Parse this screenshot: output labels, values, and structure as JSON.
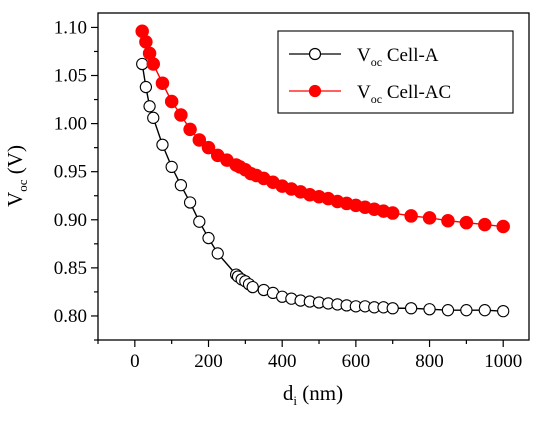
{
  "chart_data": {
    "type": "line",
    "xlabel": "d",
    "xlabel_sub": "i",
    "xlabel_unit": " (nm)",
    "ylabel": "V",
    "ylabel_sub": "oc",
    "ylabel_unit": " (V)",
    "xlim": [
      -100,
      1070
    ],
    "ylim": [
      0.775,
      1.115
    ],
    "xticks": [
      0,
      200,
      400,
      600,
      800,
      1000
    ],
    "xtick_labels": [
      "0",
      "200",
      "400",
      "600",
      "800",
      "1000"
    ],
    "yticks": [
      0.8,
      0.85,
      0.9,
      0.95,
      1.0,
      1.05,
      1.1
    ],
    "ytick_labels": [
      "0.80",
      "0.85",
      "0.90",
      "0.95",
      "1.00",
      "1.05",
      "1.10"
    ],
    "grid": false,
    "legend_position": "top-right",
    "series": [
      {
        "name": "V",
        "name_sub": "oc",
        "name_rest": " Cell-A",
        "marker": "open-circle",
        "line_color": "#000000",
        "marker_fill": "#ffffff",
        "marker_stroke": "#000000",
        "x": [
          20,
          30,
          40,
          50,
          75,
          100,
          125,
          150,
          175,
          200,
          225,
          275,
          280,
          290,
          300,
          310,
          320,
          350,
          375,
          400,
          425,
          450,
          475,
          500,
          525,
          550,
          575,
          600,
          625,
          650,
          675,
          700,
          750,
          800,
          850,
          900,
          950,
          1000
        ],
        "y": [
          1.062,
          1.038,
          1.018,
          1.006,
          0.978,
          0.955,
          0.936,
          0.918,
          0.898,
          0.881,
          0.865,
          0.843,
          0.841,
          0.838,
          0.836,
          0.833,
          0.83,
          0.827,
          0.824,
          0.82,
          0.818,
          0.816,
          0.815,
          0.814,
          0.813,
          0.812,
          0.811,
          0.81,
          0.81,
          0.809,
          0.809,
          0.808,
          0.808,
          0.807,
          0.806,
          0.806,
          0.806,
          0.805
        ]
      },
      {
        "name": "V",
        "name_sub": "oc",
        "name_rest": " Cell-AC",
        "marker": "filled-circle",
        "line_color": "#ff0000",
        "marker_fill": "#ff0000",
        "marker_stroke": "#ff0000",
        "x": [
          20,
          30,
          40,
          50,
          75,
          100,
          125,
          150,
          175,
          200,
          225,
          250,
          275,
          285,
          300,
          315,
          330,
          350,
          375,
          400,
          425,
          450,
          475,
          500,
          525,
          550,
          575,
          600,
          625,
          650,
          675,
          700,
          750,
          800,
          850,
          900,
          950,
          1000
        ],
        "y": [
          1.096,
          1.085,
          1.073,
          1.062,
          1.042,
          1.023,
          1.009,
          0.994,
          0.983,
          0.975,
          0.967,
          0.962,
          0.957,
          0.955,
          0.952,
          0.948,
          0.946,
          0.943,
          0.939,
          0.935,
          0.932,
          0.929,
          0.926,
          0.924,
          0.922,
          0.919,
          0.917,
          0.915,
          0.913,
          0.911,
          0.909,
          0.907,
          0.904,
          0.902,
          0.899,
          0.897,
          0.895,
          0.893
        ]
      }
    ]
  }
}
